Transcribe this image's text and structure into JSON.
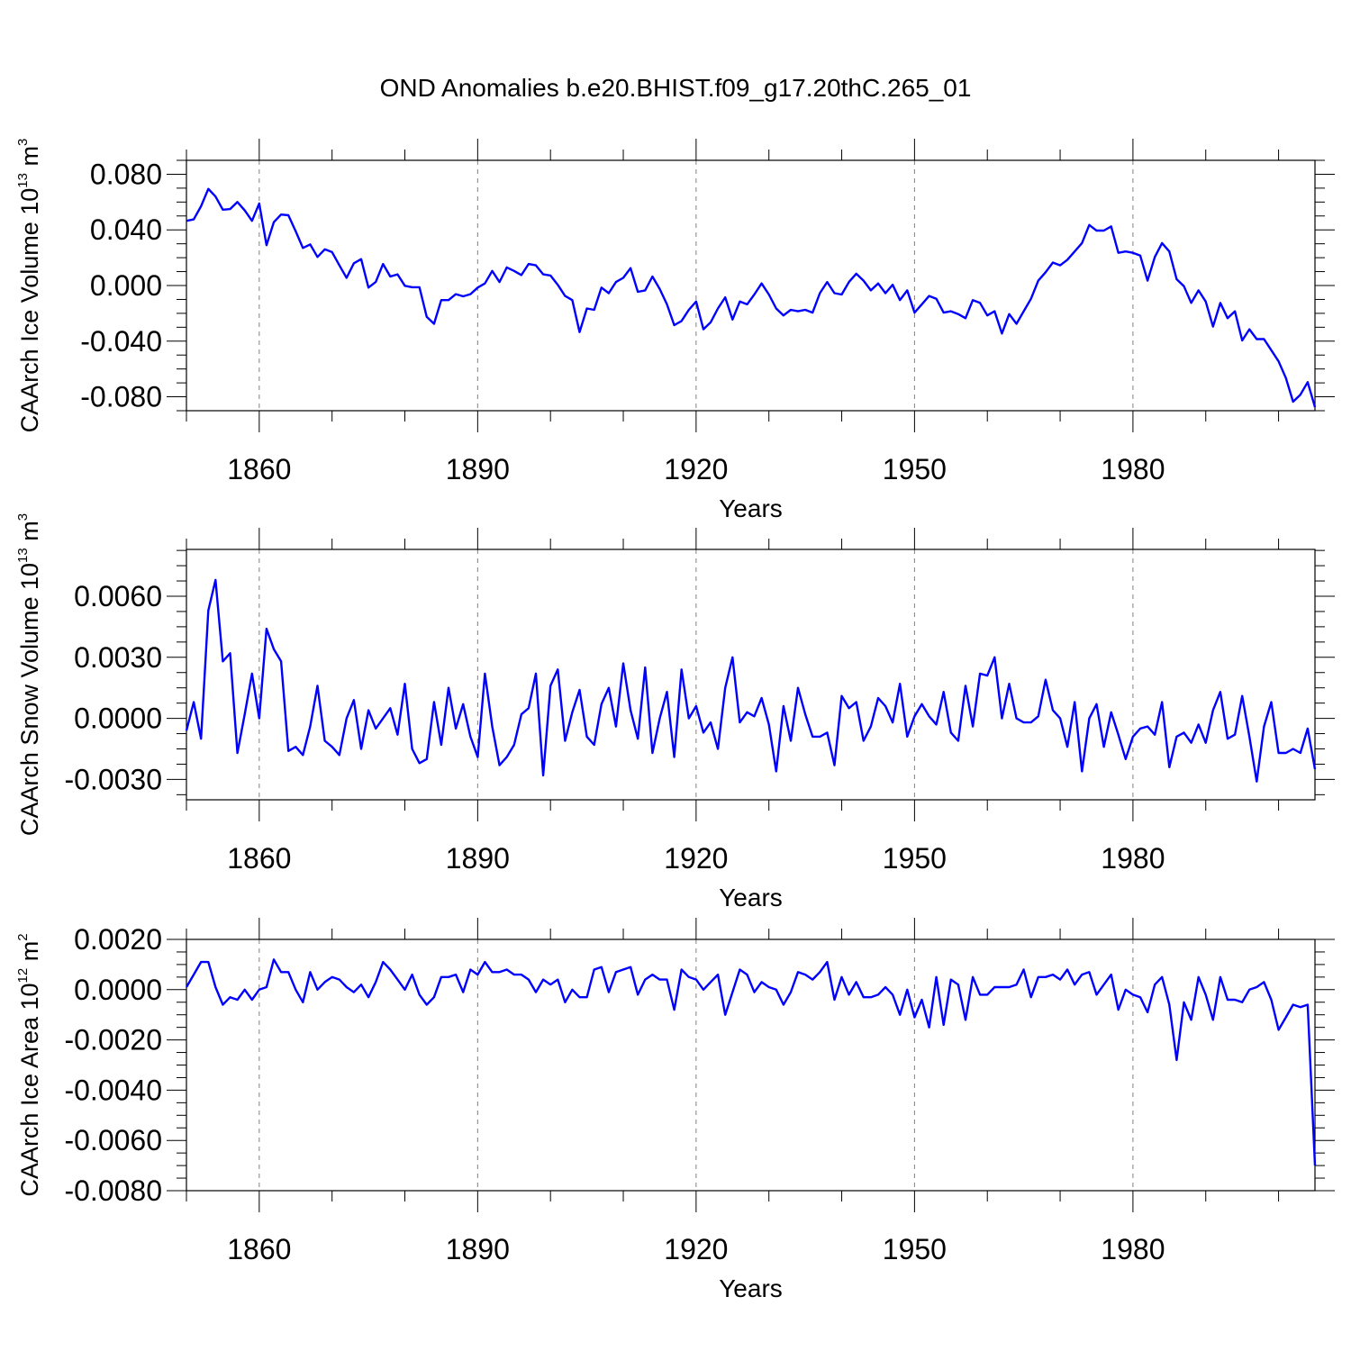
{
  "title": "OND Anomalies b.e20.BHIST.f09_g17.20thC.265_01",
  "colors": {
    "line": "#0000ff",
    "axis": "#000000",
    "grid": "#808080"
  },
  "chart_data": [
    {
      "type": "line",
      "ylabel": {
        "main": "CAArch Ice Volume 10",
        "exponent": "13",
        "unit": " m",
        "unit_exponent": "3"
      },
      "xlabel": "Years",
      "xlim": [
        1850,
        2005
      ],
      "ylim": [
        -0.09,
        0.09
      ],
      "yticks": [
        0.08,
        0.04,
        0.0,
        -0.04,
        -0.08
      ],
      "ytick_labels": [
        "0.080",
        "0.040",
        "0.000",
        "-0.040",
        "-0.080"
      ],
      "xticks": [
        1860,
        1890,
        1920,
        1950,
        1980
      ],
      "xtick_labels": [
        "1860",
        "1890",
        "1920",
        "1950",
        "1980"
      ],
      "grid": "dashed vertical at major x ticks",
      "series": [
        {
          "name": "Ice Volume",
          "x_start": 1850,
          "values": [
            0.0465,
            0.0475,
            0.057,
            0.0695,
            0.064,
            0.0545,
            0.055,
            0.06,
            0.054,
            0.0465,
            0.059,
            0.029,
            0.0455,
            0.051,
            0.0505,
            0.039,
            0.027,
            0.0295,
            0.0205,
            0.026,
            0.024,
            0.0145,
            0.0055,
            0.016,
            0.019,
            -0.0015,
            0.0025,
            0.0155,
            0.0065,
            0.008,
            -0.0002,
            -0.0012,
            -0.0012,
            -0.0225,
            -0.0275,
            -0.0105,
            -0.0105,
            -0.0062,
            -0.0078,
            -0.0062,
            -0.0015,
            0.0015,
            0.0105,
            0.0025,
            0.013,
            0.0105,
            0.0075,
            0.0155,
            0.0145,
            0.008,
            0.0072,
            0.0005,
            -0.0075,
            -0.0105,
            -0.0335,
            -0.0165,
            -0.0175,
            -0.0015,
            -0.0055,
            0.0025,
            0.0055,
            0.0125,
            -0.0045,
            -0.0035,
            0.0065,
            -0.0025,
            -0.0135,
            -0.0285,
            -0.0255,
            -0.0175,
            -0.0115,
            -0.0315,
            -0.0265,
            -0.0165,
            -0.0085,
            -0.0245,
            -0.0115,
            -0.0135,
            -0.0065,
            0.0015,
            -0.0065,
            -0.0165,
            -0.0215,
            -0.0175,
            -0.0185,
            -0.0175,
            -0.0195,
            -0.0055,
            0.0025,
            -0.0055,
            -0.0065,
            0.0025,
            0.0085,
            0.0035,
            -0.0035,
            0.0015,
            -0.0055,
            0.0005,
            -0.0105,
            -0.0035,
            -0.0195,
            -0.0135,
            -0.0075,
            -0.0095,
            -0.0195,
            -0.0185,
            -0.0205,
            -0.0235,
            -0.0105,
            -0.0125,
            -0.0215,
            -0.0185,
            -0.0345,
            -0.0205,
            -0.0275,
            -0.0185,
            -0.0095,
            0.0035,
            0.0095,
            0.0165,
            0.0145,
            0.0185,
            0.0245,
            0.0305,
            0.0435,
            0.0395,
            0.0395,
            0.0425,
            0.0235,
            0.0245,
            0.0235,
            0.0215,
            0.0035,
            0.0205,
            0.0305,
            0.0245,
            0.0045,
            -0.0005,
            -0.0125,
            -0.0035,
            -0.0115,
            -0.0295,
            -0.0125,
            -0.0235,
            -0.0185,
            -0.0395,
            -0.0315,
            -0.0385,
            -0.0385,
            -0.0465,
            -0.0545,
            -0.0665,
            -0.0835,
            -0.0785,
            -0.0695,
            -0.0875
          ]
        }
      ]
    },
    {
      "type": "line",
      "ylabel": {
        "main": "CAArch Snow Volume 10",
        "exponent": "13",
        "unit": " m",
        "unit_exponent": "3"
      },
      "xlabel": "Years",
      "xlim": [
        1850,
        2005
      ],
      "ylim": [
        -0.004,
        0.0083
      ],
      "yticks": [
        0.006,
        0.003,
        0.0,
        -0.003
      ],
      "ytick_labels": [
        "0.0060",
        "0.0030",
        "0.0000",
        "-0.0030"
      ],
      "xticks": [
        1860,
        1890,
        1920,
        1950,
        1980
      ],
      "xtick_labels": [
        "1860",
        "1890",
        "1920",
        "1950",
        "1980"
      ],
      "grid": "dashed vertical at major x ticks",
      "series": [
        {
          "name": "Snow Volume",
          "x_start": 1850,
          "values": [
            -0.0006,
            0.0008,
            -0.001,
            0.0053,
            0.0068,
            0.0028,
            0.0032,
            -0.0017,
            0.0002,
            0.0022,
            0.0,
            0.0044,
            0.0034,
            0.0028,
            -0.0016,
            -0.0014,
            -0.0018,
            -0.0004,
            0.0016,
            -0.0011,
            -0.0014,
            -0.0018,
            0.0,
            0.0009,
            -0.0015,
            0.0004,
            -0.0005,
            0.0,
            0.0005,
            -0.0008,
            0.0017,
            -0.0015,
            -0.0022,
            -0.002,
            0.0008,
            -0.0013,
            0.0015,
            -0.0005,
            0.0007,
            -0.0009,
            -0.0019,
            0.0022,
            -0.0004,
            -0.0023,
            -0.0019,
            -0.0013,
            0.0002,
            0.0005,
            0.0022,
            -0.0028,
            0.0016,
            0.0024,
            -0.0011,
            0.0003,
            0.0014,
            -0.0009,
            -0.0013,
            0.0007,
            0.0015,
            -0.0004,
            0.0027,
            0.0004,
            -0.001,
            0.0025,
            -0.0017,
            0.0,
            0.0013,
            -0.0019,
            0.0024,
            0.0,
            0.0006,
            -0.0007,
            -0.0002,
            -0.0015,
            0.0015,
            0.003,
            -0.0002,
            0.0003,
            0.0001,
            0.001,
            -0.0003,
            -0.0026,
            0.0006,
            -0.0011,
            0.0015,
            0.0002,
            -0.0009,
            -0.0009,
            -0.0007,
            -0.0023,
            0.0011,
            0.0005,
            0.0008,
            -0.0011,
            -0.0004,
            0.001,
            0.0006,
            -0.0002,
            0.0017,
            -0.0009,
            0.0001,
            0.0007,
            0.0001,
            -0.0003,
            0.0013,
            -0.0007,
            -0.0011,
            0.0016,
            -0.0004,
            0.0022,
            0.0021,
            0.003,
            0.0,
            0.0017,
            0.0,
            -0.0002,
            -0.0002,
            0.0001,
            0.0019,
            0.0004,
            0.0,
            -0.0014,
            0.0008,
            -0.0026,
            0.0,
            0.0007,
            -0.0014,
            0.0003,
            -0.0008,
            -0.002,
            -0.0009,
            -0.0005,
            -0.0004,
            -0.0008,
            0.0008,
            -0.0024,
            -0.0009,
            -0.0007,
            -0.0012,
            -0.0003,
            -0.0012,
            0.0004,
            0.0013,
            -0.001,
            -0.0008,
            0.0011,
            -0.0009,
            -0.0031,
            -0.0004,
            0.0008,
            -0.0017,
            -0.0017,
            -0.0015,
            -0.0017,
            -0.0005,
            -0.0025
          ]
        }
      ]
    },
    {
      "type": "line",
      "ylabel": {
        "main": "CAArch Ice Area 10",
        "exponent": "12",
        "unit": " m",
        "unit_exponent": "2"
      },
      "xlabel": "Years",
      "xlim": [
        1850,
        2005
      ],
      "ylim": [
        -0.008,
        0.002
      ],
      "yticks": [
        0.002,
        0.0,
        -0.002,
        -0.004,
        -0.006,
        -0.008
      ],
      "ytick_labels": [
        "0.0020",
        "0.0000",
        "-0.0020",
        "-0.0040",
        "-0.0060",
        "-0.0080"
      ],
      "xticks": [
        1860,
        1890,
        1920,
        1950,
        1980
      ],
      "xtick_labels": [
        "1860",
        "1890",
        "1920",
        "1950",
        "1980"
      ],
      "grid": "dashed vertical at major x ticks",
      "series": [
        {
          "name": "Ice Area",
          "x_start": 1850,
          "values": [
            0.0001,
            0.0006,
            0.0011,
            0.0011,
            0.0001,
            -0.0006,
            -0.0003,
            -0.0004,
            0.0,
            -0.0004,
            0.0,
            0.0001,
            0.0012,
            0.0007,
            0.0007,
            0.0,
            -0.0005,
            0.0007,
            0.0,
            0.0003,
            0.0005,
            0.0004,
            0.0001,
            -0.0001,
            0.0002,
            -0.0003,
            0.0003,
            0.0011,
            0.0008,
            0.0004,
            0.0,
            0.0006,
            -0.0002,
            -0.0006,
            -0.0003,
            0.0005,
            0.0005,
            0.0006,
            -0.0001,
            0.0008,
            0.0006,
            0.0011,
            0.0007,
            0.0007,
            0.0008,
            0.0006,
            0.0006,
            0.0004,
            -0.0001,
            0.0004,
            0.0002,
            0.0004,
            -0.0005,
            0.0,
            -0.0003,
            -0.0003,
            0.0008,
            0.0009,
            -0.0001,
            0.0007,
            0.0008,
            0.0009,
            -0.0002,
            0.0004,
            0.0006,
            0.0004,
            0.0004,
            -0.0008,
            0.0008,
            0.0005,
            0.0004,
            0.0,
            0.0003,
            0.0006,
            -0.001,
            -0.0001,
            0.0008,
            0.0006,
            -0.0001,
            0.0003,
            0.0001,
            0.0,
            -0.0006,
            -0.0001,
            0.0007,
            0.0006,
            0.0004,
            0.0007,
            0.0011,
            -0.0004,
            0.0005,
            -0.0002,
            0.0003,
            -0.0003,
            -0.0003,
            -0.0002,
            0.0001,
            -0.0002,
            -0.001,
            0.0,
            -0.0011,
            -0.0004,
            -0.0015,
            0.0005,
            -0.0014,
            0.0004,
            0.0002,
            -0.0012,
            0.0005,
            -0.0002,
            -0.0002,
            0.0001,
            0.0001,
            0.0001,
            0.0002,
            0.0008,
            -0.0003,
            0.0005,
            0.0005,
            0.0006,
            0.0004,
            0.0008,
            0.0002,
            0.0006,
            0.0007,
            -0.0002,
            0.0002,
            0.0006,
            -0.0008,
            0.0,
            -0.0002,
            -0.0003,
            -0.0009,
            0.0002,
            0.0005,
            -0.0006,
            -0.0028,
            -0.0005,
            -0.0012,
            0.0005,
            -0.0002,
            -0.0012,
            0.0005,
            -0.0004,
            -0.0004,
            -0.0005,
            0.0,
            0.0001,
            0.0003,
            -0.0004,
            -0.0016,
            -0.0011,
            -0.0006,
            -0.0007,
            -0.0006,
            -0.007
          ]
        }
      ]
    }
  ]
}
